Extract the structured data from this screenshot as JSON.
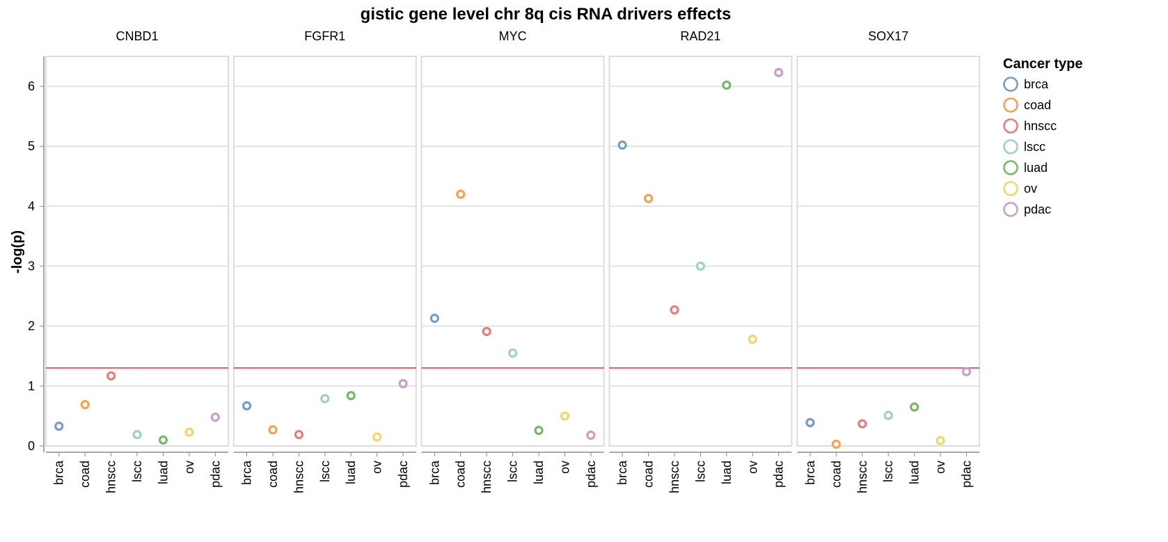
{
  "chart_data": {
    "type": "scatter",
    "title": "gistic gene level chr 8q cis RNA drivers effects",
    "ylabel": "-log(p)",
    "xlabel": "",
    "ylim": [
      0,
      6.5
    ],
    "yticks": [
      0,
      1,
      2,
      3,
      4,
      5,
      6
    ],
    "threshold": 1.301,
    "threshold_color": "#d6273b",
    "grid": true,
    "categories": [
      "brca",
      "coad",
      "hnscc",
      "lscc",
      "luad",
      "ov",
      "pdac"
    ],
    "colors": {
      "brca": "#7a9cc4",
      "coad": "#f6a24c",
      "hnscc": "#e67c7e",
      "lscc": "#9fd0c8",
      "luad": "#7db46c",
      "ov": "#f1d66b",
      "pdac": "#c9a0c3"
    },
    "legend": {
      "title": "Cancer type",
      "placement": "right",
      "entries": [
        "brca",
        "coad",
        "hnscc",
        "lscc",
        "luad",
        "ov",
        "pdac"
      ]
    },
    "panels": [
      {
        "name": "CNBD1",
        "values": [
          0.33,
          0.69,
          1.17,
          0.19,
          0.1,
          0.23,
          0.48
        ]
      },
      {
        "name": "FGFR1",
        "values": [
          0.67,
          0.27,
          0.19,
          0.79,
          0.84,
          0.15,
          1.04
        ]
      },
      {
        "name": "MYC",
        "values": [
          2.13,
          4.2,
          1.91,
          1.55,
          0.26,
          0.5,
          0.18
        ]
      },
      {
        "name": "RAD21",
        "values": [
          5.02,
          4.13,
          2.27,
          3.0,
          6.02,
          1.78,
          6.23
        ]
      },
      {
        "name": "SOX17",
        "values": [
          0.39,
          0.03,
          0.37,
          0.51,
          0.65,
          0.09,
          1.24
        ]
      }
    ]
  }
}
